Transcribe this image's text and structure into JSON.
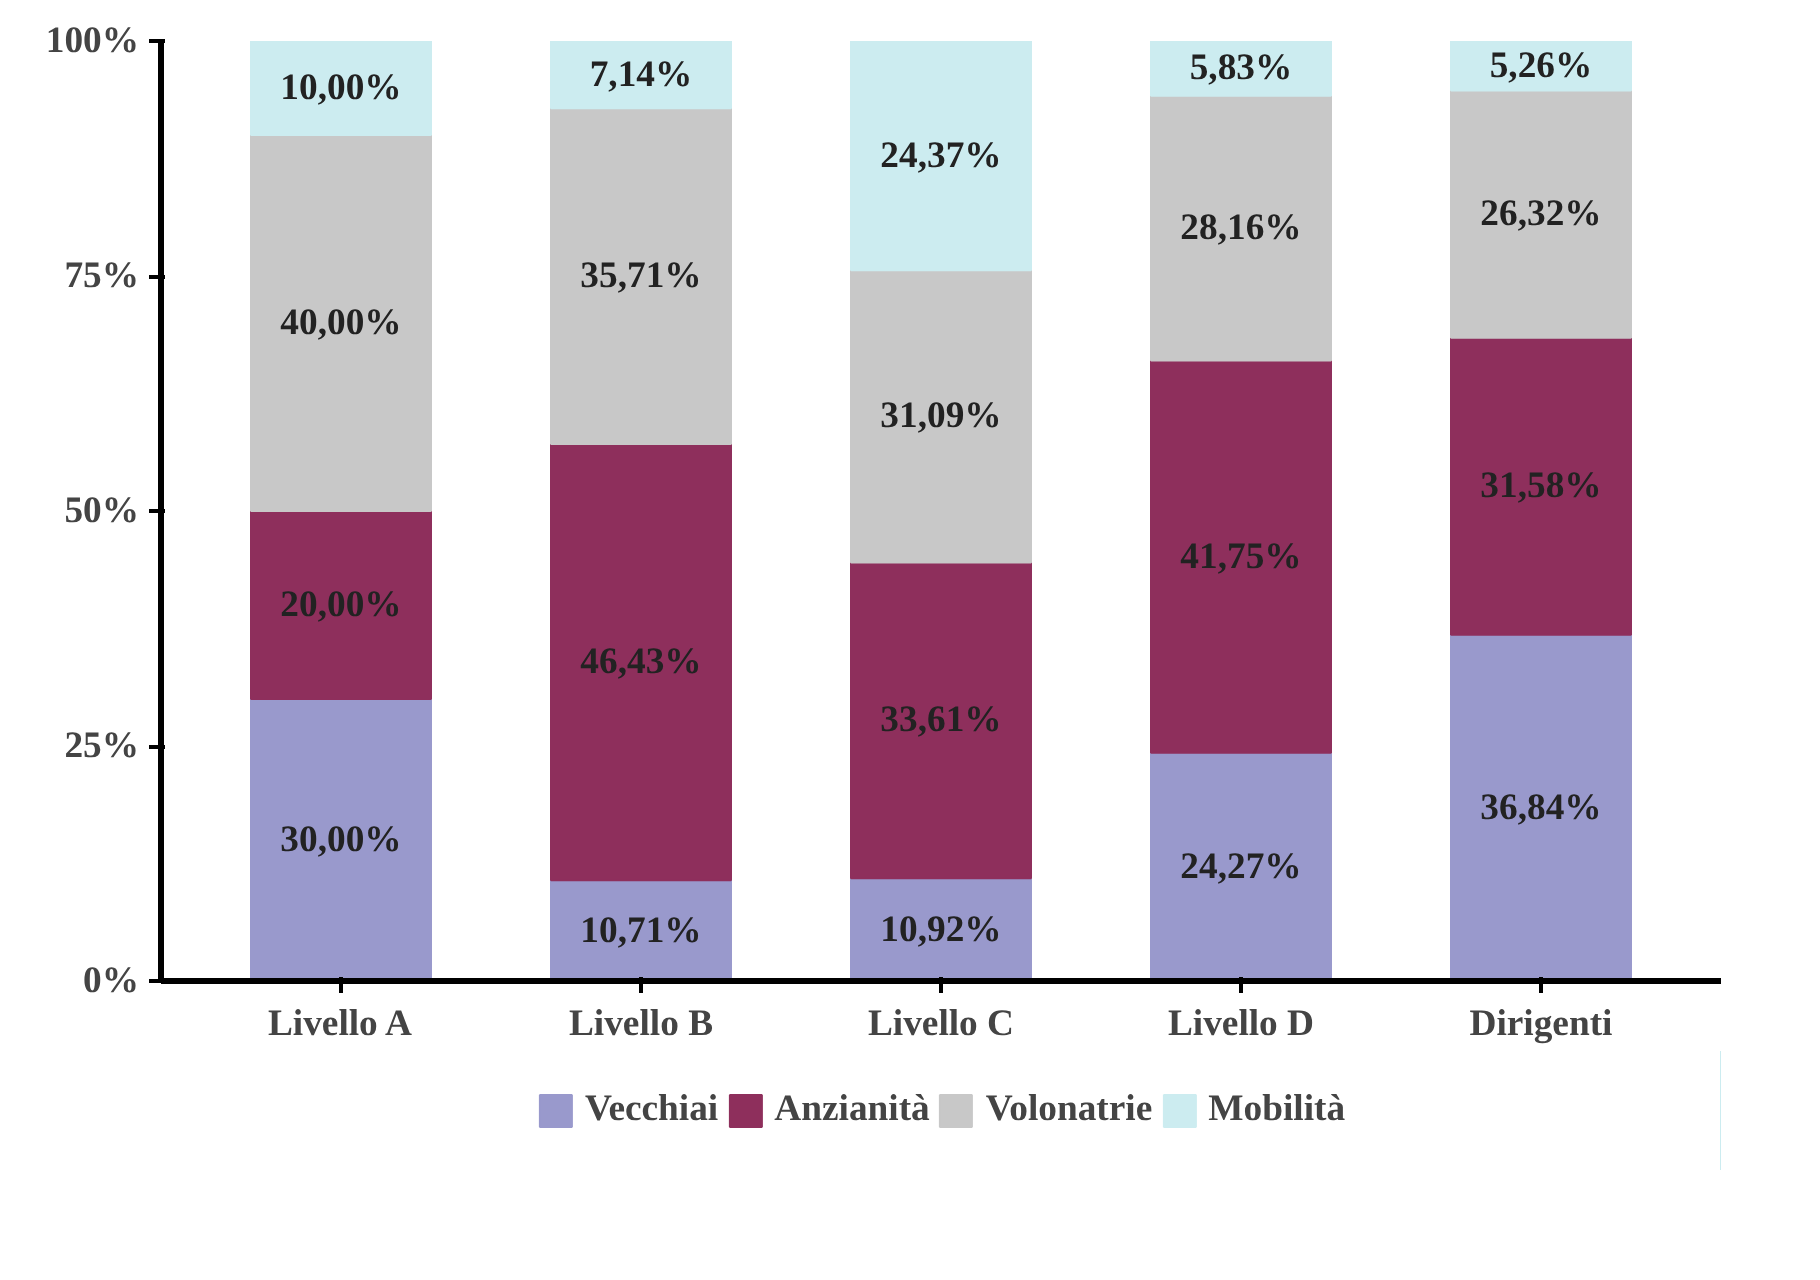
{
  "chart_data": {
    "type": "bar",
    "stacked": true,
    "categories": [
      "Livello A",
      "Livello B",
      "Livello C",
      "Livello D",
      "Dirigenti"
    ],
    "series": [
      {
        "name": "Vecchiai",
        "color": "#9999cc",
        "values": [
          30.0,
          10.71,
          10.92,
          24.27,
          36.84
        ],
        "value_labels": [
          "30,00%",
          "10,71%",
          "10,92%",
          "24,27%",
          "36,84%"
        ]
      },
      {
        "name": "Anzianità",
        "color": "#8e2f5c",
        "values": [
          20.0,
          46.43,
          33.61,
          41.75,
          31.58
        ],
        "value_labels": [
          "20,00%",
          "46,43%",
          "33,61%",
          "41,75%",
          "31,58%"
        ]
      },
      {
        "name": "Volonatrie",
        "color": "#c8c8c8",
        "values": [
          40.0,
          35.71,
          31.09,
          28.16,
          26.32
        ],
        "value_labels": [
          "40,00%",
          "35,71%",
          "31,09%",
          "28,16%",
          "26,32%"
        ]
      },
      {
        "name": "Mobilità",
        "color": "#ccecf0",
        "values": [
          10.0,
          7.14,
          24.37,
          5.83,
          5.26
        ],
        "value_labels": [
          "10,00%",
          "7,14%",
          "24,37%",
          "5,83%",
          "5,26%"
        ]
      }
    ],
    "ylim": [
      0,
      100
    ],
    "yticks": [
      {
        "value": 0,
        "label": "0%"
      },
      {
        "value": 25,
        "label": "25%"
      },
      {
        "value": 50,
        "label": "50%"
      },
      {
        "value": 75,
        "label": "75%"
      },
      {
        "value": 100,
        "label": "100%"
      }
    ],
    "grid": false,
    "legend": "bottom"
  }
}
